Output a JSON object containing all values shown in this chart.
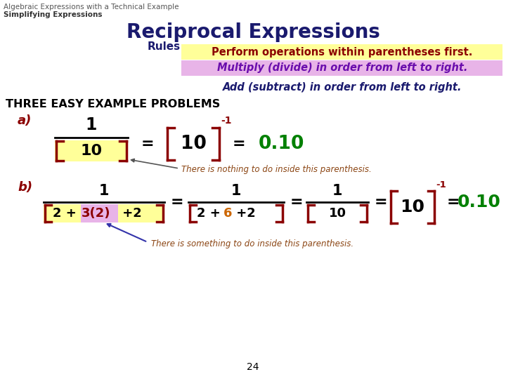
{
  "title1": "Algebraic Expressions with a Technical Example",
  "title2": "Simplifying Expressions",
  "heading": "Reciprocal Expressions",
  "rules_label": "Rules",
  "rule1": "Perform operations within parentheses first.",
  "rule2": "Multiply (divide) in order from left to right.",
  "rule3": "Add (subtract) in order from left to right.",
  "three_problems": "THREE EASY EXAMPLE PROBLEMS",
  "bg_color": "#ffffff",
  "heading_color": "#1a1a6e",
  "rule1_bg": "#ffff99",
  "rule2_bg": "#e8b4e8",
  "rule1_color": "#8B0000",
  "rule2_color": "#6a0dad",
  "rule3_color": "#1a1a6e",
  "label_color": "#8B0000",
  "dark_red": "#8B0000",
  "green_color": "#008000",
  "black": "#000000",
  "annotation_color": "#8B4513",
  "orange_color": "#cc6600",
  "page_num": "24"
}
